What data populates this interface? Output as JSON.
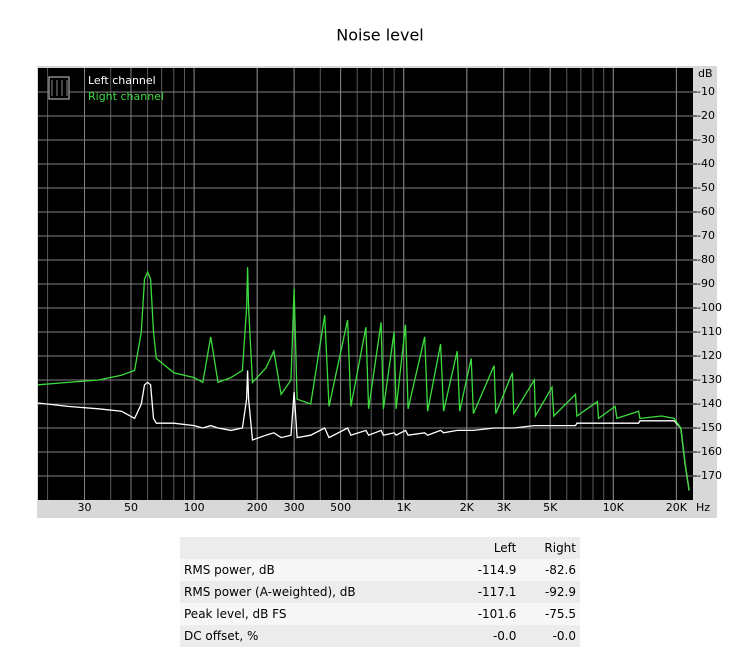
{
  "chart_data": {
    "type": "line",
    "title": "Noise level",
    "xlabel": "Hz",
    "ylabel": "dB",
    "xscale": "log",
    "grid": true,
    "legend": "top-left",
    "xlim": [
      18,
      24000
    ],
    "ylim": [
      -180,
      0
    ],
    "xticks": [
      30,
      50,
      100,
      200,
      300,
      500,
      {
        "value": 1000,
        "label": "1K"
      },
      {
        "value": 2000,
        "label": "2K"
      },
      {
        "value": 3000,
        "label": "3K"
      },
      {
        "value": 5000,
        "label": "5K"
      },
      {
        "value": 10000,
        "label": "10K"
      },
      {
        "value": 20000,
        "label": "20K"
      }
    ],
    "yticks": [
      -10,
      -20,
      -30,
      -40,
      -50,
      -60,
      -70,
      -80,
      -90,
      -100,
      -110,
      -120,
      -130,
      -140,
      -150,
      -160,
      -170
    ],
    "x": [
      18,
      25,
      35,
      45,
      52,
      56,
      58,
      60,
      62,
      64,
      66,
      80,
      100,
      110,
      120,
      130,
      150,
      170,
      178,
      180,
      182,
      190,
      220,
      240,
      260,
      290,
      300,
      310,
      360,
      420,
      440,
      540,
      560,
      660,
      680,
      780,
      800,
      900,
      920,
      1020,
      1050,
      1260,
      1300,
      1500,
      1550,
      1800,
      1850,
      2100,
      2150,
      2700,
      2750,
      3300,
      3350,
      4200,
      4250,
      5100,
      5200,
      6600,
      6700,
      8400,
      8500,
      10200,
      10400,
      13200,
      13400,
      17000,
      19500,
      21000,
      22000,
      23000
    ],
    "series": [
      {
        "name": "Left channel",
        "color": "#ffffff",
        "values": [
          -139.6,
          -141,
          -142,
          -143,
          -146,
          -140,
          -132,
          -131,
          -132,
          -146,
          -148,
          -148,
          -149,
          -150,
          -149,
          -150,
          -151,
          -150,
          -138,
          -126,
          -138,
          -155,
          -153,
          -152,
          -154,
          -153,
          -135,
          -154,
          -153,
          -150,
          -154,
          -150,
          -153,
          -151,
          -153,
          -151,
          -153,
          -152,
          -153,
          -151,
          -153,
          -152,
          -153,
          -151,
          -152,
          -151,
          -151,
          -151,
          -151,
          -150,
          -150,
          -150,
          -150,
          -149,
          -149,
          -149,
          -149,
          -149,
          -148,
          -148,
          -148,
          -148,
          -148,
          -148,
          -147,
          -147,
          -147,
          -150,
          -165,
          -176
        ]
      },
      {
        "name": "Right channel",
        "color": "#3cdc3c",
        "values": [
          -132,
          -131,
          -130,
          -128,
          -126,
          -110,
          -88,
          -85,
          -88,
          -110,
          -121,
          -127,
          -129,
          -131,
          -112,
          -131,
          -129,
          -126,
          -100,
          -83,
          -100,
          -131,
          -125,
          -118,
          -136,
          -130,
          -92,
          -138,
          -140,
          -103,
          -141,
          -105,
          -141,
          -108,
          -142,
          -106,
          -142,
          -110,
          -142,
          -107,
          -142,
          -112,
          -143,
          -115,
          -143,
          -118,
          -143,
          -121,
          -144,
          -124,
          -144,
          -127,
          -144,
          -130,
          -145,
          -133,
          -145,
          -136,
          -145,
          -139,
          -146,
          -141,
          -146,
          -143,
          -146,
          -145,
          -146,
          -150,
          -165,
          -176
        ]
      }
    ]
  },
  "table": {
    "columns": [
      "Left",
      "Right"
    ],
    "rows": [
      [
        "RMS power, dB",
        "-114.9",
        "-82.6"
      ],
      [
        "RMS power (A-weighted), dB",
        "-117.1",
        "-92.9"
      ],
      [
        "Peak level, dB FS",
        "-101.6",
        "-75.5"
      ],
      [
        "DC offset, %",
        "-0.0",
        "-0.0"
      ]
    ]
  }
}
